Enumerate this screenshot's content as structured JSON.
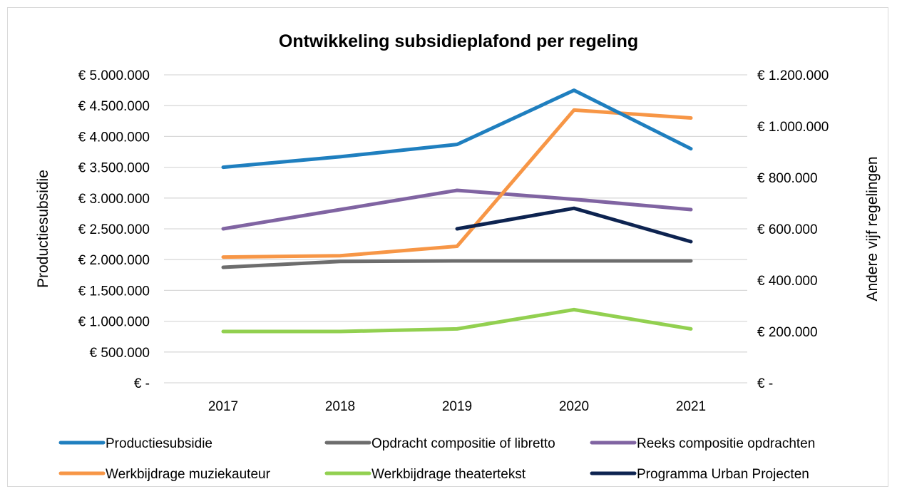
{
  "chart_data": {
    "type": "line",
    "title": "Ontwikkeling subsidieplafond per regeling",
    "categories": [
      "2017",
      "2018",
      "2019",
      "2020",
      "2021"
    ],
    "ylabel": "Productiesubsidie",
    "y2label": "Andere vijf regelingen",
    "ylim": [
      0,
      5000000
    ],
    "y2lim": [
      0,
      1200000
    ],
    "y_ticks": [
      "€ -",
      "€ 500.000",
      "€ 1.000.000",
      "€ 1.500.000",
      "€ 2.000.000",
      "€ 2.500.000",
      "€ 3.000.000",
      "€ 3.500.000",
      "€ 4.000.000",
      "€ 4.500.000",
      "€ 5.000.000"
    ],
    "y2_ticks": [
      "€ -",
      "€ 200.000",
      "€ 400.000",
      "€ 600.000",
      "€ 800.000",
      "€ 1.000.000",
      "€ 1.200.000"
    ],
    "grid": true,
    "legend_position": "bottom",
    "series": [
      {
        "name": "Productiesubsidie",
        "axis": "left",
        "color": "#1f7fbf",
        "values": [
          3500000,
          3670000,
          3870000,
          4750000,
          3800000
        ]
      },
      {
        "name": "Opdracht compositie of libretto",
        "axis": "right",
        "color": "#6d6d6d",
        "values": [
          450000,
          473000,
          475000,
          475000,
          475000
        ]
      },
      {
        "name": "Reeks compositie opdrachten",
        "axis": "right",
        "color": "#8064a2",
        "values": [
          600000,
          675000,
          750000,
          715000,
          675000
        ]
      },
      {
        "name": "Werkbijdrage muziekauteur",
        "axis": "right",
        "color": "#f79646",
        "values": [
          490000,
          495000,
          532000,
          1063000,
          1032000
        ]
      },
      {
        "name": "Werkbijdrage theatertekst",
        "axis": "right",
        "color": "#92d050",
        "values": [
          200000,
          200000,
          210000,
          285000,
          210000
        ]
      },
      {
        "name": "Programma Urban Projecten",
        "axis": "right",
        "color": "#0d2350",
        "values": [
          null,
          null,
          600000,
          680000,
          550000
        ]
      }
    ]
  }
}
